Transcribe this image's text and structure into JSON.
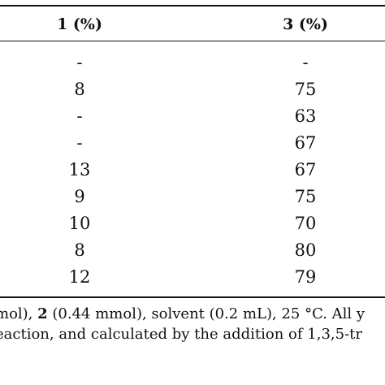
{
  "table": {
    "headers": {
      "col1_label": "1 (%)",
      "col3_label": "3 (%)"
    },
    "rows": [
      {
        "c1": "-",
        "c3": "-"
      },
      {
        "c1": "8",
        "c3": "75"
      },
      {
        "c1": "-",
        "c3": "63"
      },
      {
        "c1": "-",
        "c3": "67"
      },
      {
        "c1": "13",
        "c3": "67"
      },
      {
        "c1": "9",
        "c3": "75"
      },
      {
        "c1": "10",
        "c3": "70"
      },
      {
        "c1": "8",
        "c3": "80"
      },
      {
        "c1": "12",
        "c3": "79"
      }
    ]
  },
  "footnote": {
    "line1_a": "mol), ",
    "line1_b": "2",
    "line1_c": " (0.44 mmol), solvent (0.2 mL), 25 °C. All y",
    "line2": "eaction, and calculated by the addition of 1,3,5-tr"
  }
}
